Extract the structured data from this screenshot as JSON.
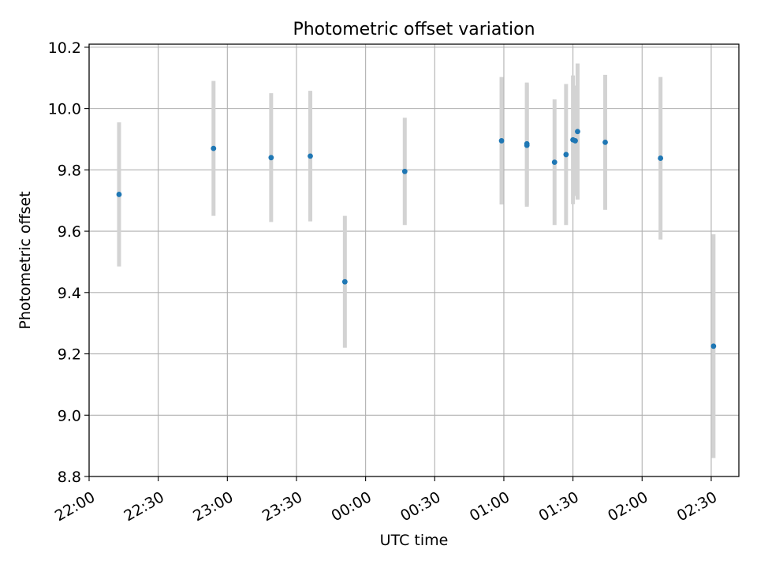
{
  "chart_data": {
    "type": "scatter",
    "title": "Photometric offset variation",
    "xlabel": "UTC time",
    "ylabel": "Photometric offset",
    "grid": true,
    "xlim": [
      "22:00",
      "02:42"
    ],
    "ylim": [
      8.8,
      10.21
    ],
    "x_ticks": [
      "22:00",
      "22:30",
      "23:00",
      "23:30",
      "00:00",
      "00:30",
      "01:00",
      "01:30",
      "02:00",
      "02:30"
    ],
    "y_ticks": [
      "8.8",
      "9.0",
      "9.2",
      "9.4",
      "9.6",
      "9.8",
      "10.0",
      "10.2"
    ],
    "colors": {
      "points": "#1f77b4",
      "error_bars": "#d3d3d3",
      "grid": "#b0b0b0"
    },
    "points": [
      {
        "time": "22:13",
        "y": 9.72,
        "err": 0.235
      },
      {
        "time": "22:54",
        "y": 9.87,
        "err": 0.22
      },
      {
        "time": "23:19",
        "y": 9.84,
        "err": 0.21
      },
      {
        "time": "23:36",
        "y": 9.845,
        "err": 0.213
      },
      {
        "time": "23:51",
        "y": 9.435,
        "err": 0.215
      },
      {
        "time": "00:17",
        "y": 9.795,
        "err": 0.175
      },
      {
        "time": "00:59",
        "y": 9.895,
        "err": 0.208
      },
      {
        "time": "01:10",
        "y": 9.885,
        "err": 0.2
      },
      {
        "time": "01:10",
        "y": 9.88,
        "err": 0.2
      },
      {
        "time": "01:22",
        "y": 9.825,
        "err": 0.205
      },
      {
        "time": "01:27",
        "y": 9.85,
        "err": 0.23
      },
      {
        "time": "01:30",
        "y": 9.898,
        "err": 0.21
      },
      {
        "time": "01:31",
        "y": 9.895,
        "err": 0.18
      },
      {
        "time": "01:32",
        "y": 9.925,
        "err": 0.222
      },
      {
        "time": "01:44",
        "y": 9.89,
        "err": 0.22
      },
      {
        "time": "02:08",
        "y": 9.838,
        "err": 0.265
      },
      {
        "time": "02:31",
        "y": 9.225,
        "err": 0.365
      }
    ]
  }
}
